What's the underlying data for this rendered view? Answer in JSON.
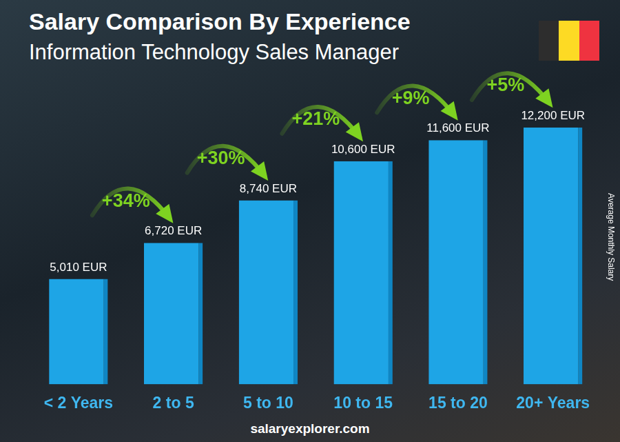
{
  "chart_data": {
    "type": "bar",
    "title": "Salary Comparison By Experience",
    "subtitle": "Information Technology Sales Manager",
    "y_label": "Average Monthly Salary",
    "categories": [
      "< 2 Years",
      "2 to 5",
      "5 to 10",
      "10 to 15",
      "15 to 20",
      "20+ Years"
    ],
    "values": [
      5010,
      6720,
      8740,
      10600,
      11600,
      12200
    ],
    "value_labels": [
      "5,010 EUR",
      "6,720 EUR",
      "8,740 EUR",
      "10,600 EUR",
      "11,600 EUR",
      "12,200 EUR"
    ],
    "data_labels": true,
    "color": "#1ea5e6",
    "ylim": [
      0,
      14000
    ],
    "grid": false,
    "tick_labels": "x",
    "annotations": [
      {
        "text": "+34%",
        "from": "< 2 Years",
        "to": "2 to 5"
      },
      {
        "text": "+30%",
        "from": "2 to 5",
        "to": "5 to 10"
      },
      {
        "text": "+21%",
        "from": "5 to 10",
        "to": "10 to 15"
      },
      {
        "text": "+9%",
        "from": "10 to 15",
        "to": "15 to 20"
      },
      {
        "text": "+5%",
        "from": "15 to 20",
        "to": "20+ Years"
      }
    ],
    "source": "salaryexplorer.com"
  }
}
